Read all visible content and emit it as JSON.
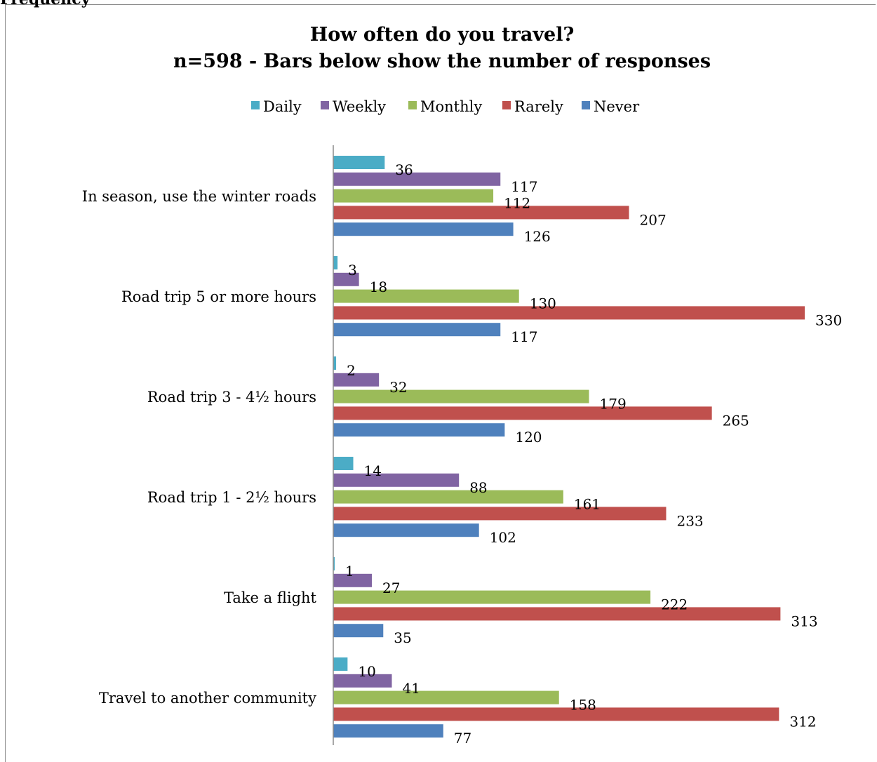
{
  "page_heading_fragment": "Frequency",
  "chart_data": {
    "type": "bar",
    "orientation": "horizontal",
    "title_line1": "How often do you travel?",
    "title_line2": "n=598 - Bars below show the number of responses",
    "xlabel": "",
    "ylabel": "",
    "xlim": [
      0,
      330
    ],
    "grid": false,
    "legend_position": "top",
    "categories": [
      "In season, use the winter roads",
      "Road trip 5 or more hours",
      "Road trip 3 - 4½  hours",
      "Road trip 1 - 2½  hours",
      "Take a flight",
      "Travel to another community"
    ],
    "series": [
      {
        "name": "Daily",
        "color": "#4bacc6",
        "values": [
          36,
          3,
          2,
          14,
          1,
          10
        ]
      },
      {
        "name": "Weekly",
        "color": "#8064a2",
        "values": [
          117,
          18,
          32,
          88,
          27,
          41
        ]
      },
      {
        "name": "Monthly",
        "color": "#9bbb59",
        "values": [
          112,
          130,
          179,
          161,
          222,
          158
        ]
      },
      {
        "name": "Rarely",
        "color": "#c0504d",
        "values": [
          207,
          330,
          265,
          233,
          313,
          312
        ]
      },
      {
        "name": "Never",
        "color": "#4f81bd",
        "values": [
          126,
          117,
          120,
          102,
          35,
          77
        ]
      }
    ]
  }
}
